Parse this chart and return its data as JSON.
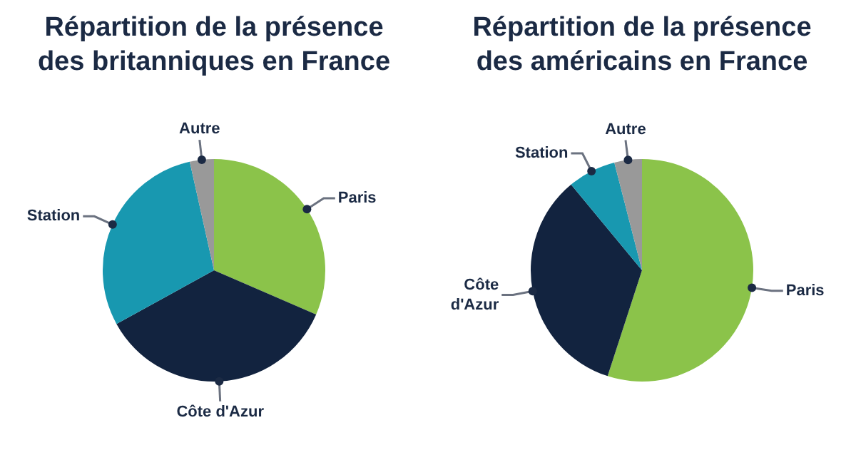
{
  "chart_data": [
    {
      "type": "pie",
      "title": "Répartition de la présence des britanniques en France",
      "categories": [
        "Paris",
        "Côte d'Azur",
        "Station",
        "Autre"
      ],
      "values": [
        31.5,
        35.5,
        29.5,
        3.5
      ],
      "colors": [
        "#8bc34a",
        "#12233f",
        "#1898b0",
        "#999999"
      ]
    },
    {
      "type": "pie",
      "title": "Répartition de la présence des américains en France",
      "categories": [
        "Paris",
        "Côte d'Azur",
        "Station",
        "Autre"
      ],
      "values": [
        55,
        34,
        7,
        4
      ],
      "colors": [
        "#8bc34a",
        "#12233f",
        "#1898b0",
        "#999999"
      ]
    }
  ]
}
